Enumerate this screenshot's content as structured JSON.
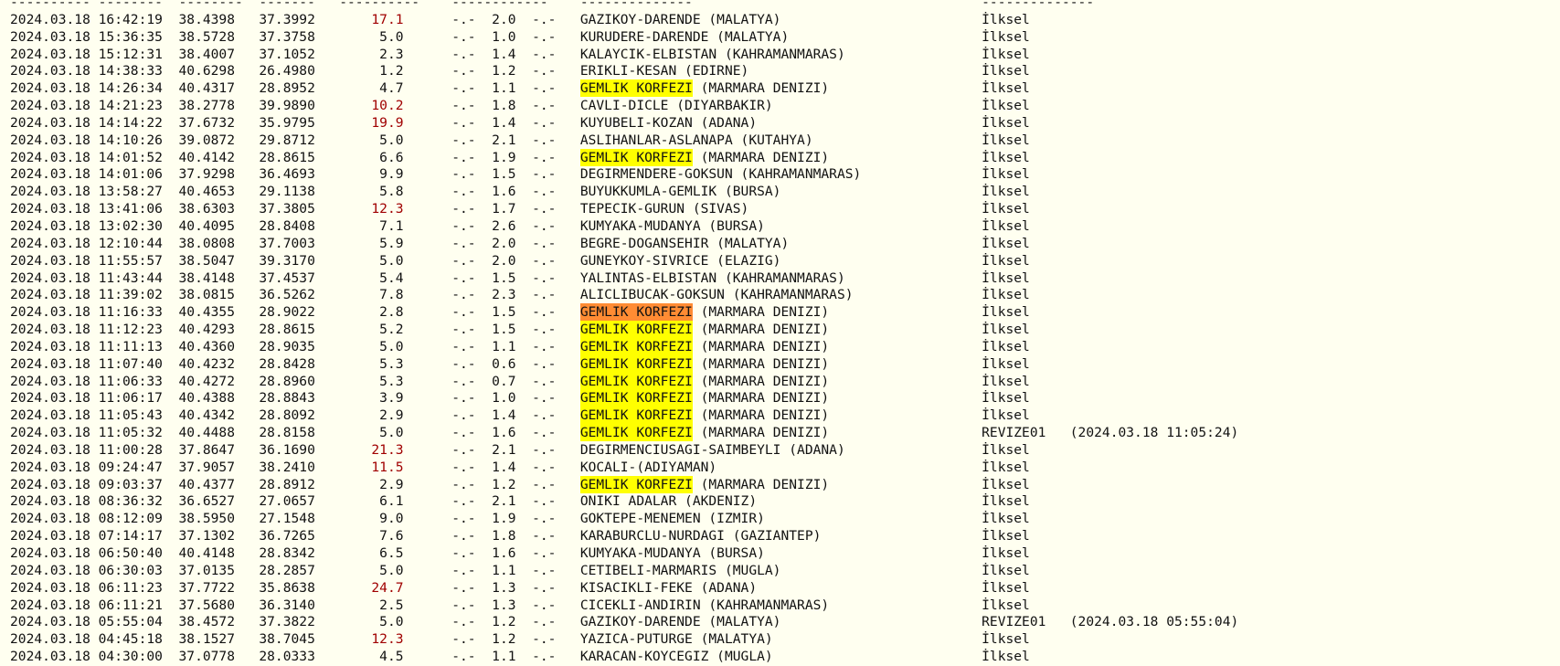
{
  "colors": {
    "background": "#fffff0",
    "highlight_yellow": "#ffff00",
    "highlight_orange": "#ff8c33",
    "deep_depth": "#a00000"
  },
  "header_rule": [
    "----------",
    "--------",
    "--------",
    "-------",
    "----------",
    "------------",
    "--------------",
    "--------------"
  ],
  "rows": [
    [
      "2024.03.18",
      "16:42:19",
      "38.4398",
      "37.3992",
      "17.1",
      "-.-",
      "2.0",
      "-.-",
      "GAZIKOY-DARENDE (MALATYA)",
      null,
      "İlksel",
      null
    ],
    [
      "2024.03.18",
      "15:36:35",
      "38.5728",
      "37.3758",
      "5.0",
      "-.-",
      "1.0",
      "-.-",
      "KURUDERE-DARENDE (MALATYA)",
      null,
      "İlksel",
      null
    ],
    [
      "2024.03.18",
      "15:12:31",
      "38.4007",
      "37.1052",
      "2.3",
      "-.-",
      "1.4",
      "-.-",
      "KALAYCIK-ELBISTAN (KAHRAMANMARAS)",
      null,
      "İlksel",
      null
    ],
    [
      "2024.03.18",
      "14:38:33",
      "40.6298",
      "26.4980",
      "1.2",
      "-.-",
      "1.2",
      "-.-",
      "ERIKLI-KESAN (EDIRNE)",
      null,
      "İlksel",
      null
    ],
    [
      "2024.03.18",
      "14:26:34",
      "40.4317",
      "28.8952",
      "4.7",
      "-.-",
      "1.1",
      "-.-",
      "GEMLIK KORFEZI (MARMARA DENIZI)",
      "yellow",
      "İlksel",
      null
    ],
    [
      "2024.03.18",
      "14:21:23",
      "38.2778",
      "39.9890",
      "10.2",
      "-.-",
      "1.8",
      "-.-",
      "CAVLI-DICLE (DIYARBAKIR)",
      null,
      "İlksel",
      null
    ],
    [
      "2024.03.18",
      "14:14:22",
      "37.6732",
      "35.9795",
      "19.9",
      "-.-",
      "1.4",
      "-.-",
      "KUYUBELI-KOZAN (ADANA)",
      null,
      "İlksel",
      null
    ],
    [
      "2024.03.18",
      "14:10:26",
      "39.0872",
      "29.8712",
      "5.0",
      "-.-",
      "2.1",
      "-.-",
      "ASLIHANLAR-ASLANAPA (KUTAHYA)",
      null,
      "İlksel",
      null
    ],
    [
      "2024.03.18",
      "14:01:52",
      "40.4142",
      "28.8615",
      "6.6",
      "-.-",
      "1.9",
      "-.-",
      "GEMLIK KORFEZI (MARMARA DENIZI)",
      "yellow",
      "İlksel",
      null
    ],
    [
      "2024.03.18",
      "14:01:06",
      "37.9298",
      "36.4693",
      "9.9",
      "-.-",
      "1.5",
      "-.-",
      "DEGIRMENDERE-GOKSUN (KAHRAMANMARAS)",
      null,
      "İlksel",
      null
    ],
    [
      "2024.03.18",
      "13:58:27",
      "40.4653",
      "29.1138",
      "5.8",
      "-.-",
      "1.6",
      "-.-",
      "BUYUKKUMLA-GEMLIK (BURSA)",
      null,
      "İlksel",
      null
    ],
    [
      "2024.03.18",
      "13:41:06",
      "38.6303",
      "37.3805",
      "12.3",
      "-.-",
      "1.7",
      "-.-",
      "TEPECIK-GURUN (SIVAS)",
      null,
      "İlksel",
      null
    ],
    [
      "2024.03.18",
      "13:02:30",
      "40.4095",
      "28.8408",
      "7.1",
      "-.-",
      "2.6",
      "-.-",
      "KUMYAKA-MUDANYA (BURSA)",
      null,
      "İlksel",
      null
    ],
    [
      "2024.03.18",
      "12:10:44",
      "38.0808",
      "37.7003",
      "5.9",
      "-.-",
      "2.0",
      "-.-",
      "BEGRE-DOGANSEHIR (MALATYA)",
      null,
      "İlksel",
      null
    ],
    [
      "2024.03.18",
      "11:55:57",
      "38.5047",
      "39.3170",
      "5.0",
      "-.-",
      "2.0",
      "-.-",
      "GUNEYKOY-SIVRICE (ELAZIG)",
      null,
      "İlksel",
      null
    ],
    [
      "2024.03.18",
      "11:43:44",
      "38.4148",
      "37.4537",
      "5.4",
      "-.-",
      "1.5",
      "-.-",
      "YALINTAS-ELBISTAN (KAHRAMANMARAS)",
      null,
      "İlksel",
      null
    ],
    [
      "2024.03.18",
      "11:39:02",
      "38.0815",
      "36.5262",
      "7.8",
      "-.-",
      "2.3",
      "-.-",
      "ALICLIBUCAK-GOKSUN (KAHRAMANMARAS)",
      null,
      "İlksel",
      null
    ],
    [
      "2024.03.18",
      "11:16:33",
      "40.4355",
      "28.9022",
      "2.8",
      "-.-",
      "1.5",
      "-.-",
      "GEMLIK KORFEZI (MARMARA DENIZI)",
      "orange",
      "İlksel",
      null
    ],
    [
      "2024.03.18",
      "11:12:23",
      "40.4293",
      "28.8615",
      "5.2",
      "-.-",
      "1.5",
      "-.-",
      "GEMLIK KORFEZI (MARMARA DENIZI)",
      "yellow",
      "İlksel",
      null
    ],
    [
      "2024.03.18",
      "11:11:13",
      "40.4360",
      "28.9035",
      "5.0",
      "-.-",
      "1.1",
      "-.-",
      "GEMLIK KORFEZI (MARMARA DENIZI)",
      "yellow",
      "İlksel",
      null
    ],
    [
      "2024.03.18",
      "11:07:40",
      "40.4232",
      "28.8428",
      "5.3",
      "-.-",
      "0.6",
      "-.-",
      "GEMLIK KORFEZI (MARMARA DENIZI)",
      "yellow",
      "İlksel",
      null
    ],
    [
      "2024.03.18",
      "11:06:33",
      "40.4272",
      "28.8960",
      "5.3",
      "-.-",
      "0.7",
      "-.-",
      "GEMLIK KORFEZI (MARMARA DENIZI)",
      "yellow",
      "İlksel",
      null
    ],
    [
      "2024.03.18",
      "11:06:17",
      "40.4388",
      "28.8843",
      "3.9",
      "-.-",
      "1.0",
      "-.-",
      "GEMLIK KORFEZI (MARMARA DENIZI)",
      "yellow",
      "İlksel",
      null
    ],
    [
      "2024.03.18",
      "11:05:43",
      "40.4342",
      "28.8092",
      "2.9",
      "-.-",
      "1.4",
      "-.-",
      "GEMLIK KORFEZI (MARMARA DENIZI)",
      "yellow",
      "İlksel",
      null
    ],
    [
      "2024.03.18",
      "11:05:32",
      "40.4488",
      "28.8158",
      "5.0",
      "-.-",
      "1.6",
      "-.-",
      "GEMLIK KORFEZI (MARMARA DENIZI)",
      "yellow",
      "REVIZE01",
      "(2024.03.18 11:05:24)"
    ],
    [
      "2024.03.18",
      "11:00:28",
      "37.8647",
      "36.1690",
      "21.3",
      "-.-",
      "2.1",
      "-.-",
      "DEGIRMENCIUSAGI-SAIMBEYLI (ADANA)",
      null,
      "İlksel",
      null
    ],
    [
      "2024.03.18",
      "09:24:47",
      "37.9057",
      "38.2410",
      "11.5",
      "-.-",
      "1.4",
      "-.-",
      "KOCALI-(ADIYAMAN)",
      null,
      "İlksel",
      null
    ],
    [
      "2024.03.18",
      "09:03:37",
      "40.4377",
      "28.8912",
      "2.9",
      "-.-",
      "1.2",
      "-.-",
      "GEMLIK KORFEZI (MARMARA DENIZI)",
      "yellow",
      "İlksel",
      null
    ],
    [
      "2024.03.18",
      "08:36:32",
      "36.6527",
      "27.0657",
      "6.1",
      "-.-",
      "2.1",
      "-.-",
      "ONIKI ADALAR (AKDENIZ)",
      null,
      "İlksel",
      null
    ],
    [
      "2024.03.18",
      "08:12:09",
      "38.5950",
      "27.1548",
      "9.0",
      "-.-",
      "1.9",
      "-.-",
      "GOKTEPE-MENEMEN (IZMIR)",
      null,
      "İlksel",
      null
    ],
    [
      "2024.03.18",
      "07:14:17",
      "37.1302",
      "36.7265",
      "7.6",
      "-.-",
      "1.8",
      "-.-",
      "KARABURCLU-NURDAGI (GAZIANTEP)",
      null,
      "İlksel",
      null
    ],
    [
      "2024.03.18",
      "06:50:40",
      "40.4148",
      "28.8342",
      "6.5",
      "-.-",
      "1.6",
      "-.-",
      "KUMYAKA-MUDANYA (BURSA)",
      null,
      "İlksel",
      null
    ],
    [
      "2024.03.18",
      "06:30:03",
      "37.0135",
      "28.2857",
      "5.0",
      "-.-",
      "1.1",
      "-.-",
      "CETIBELI-MARMARIS (MUGLA)",
      null,
      "İlksel",
      null
    ],
    [
      "2024.03.18",
      "06:11:23",
      "37.7722",
      "35.8638",
      "24.7",
      "-.-",
      "1.3",
      "-.-",
      "KISACIKLI-FEKE (ADANA)",
      null,
      "İlksel",
      null
    ],
    [
      "2024.03.18",
      "06:11:21",
      "37.5680",
      "36.3140",
      "2.5",
      "-.-",
      "1.3",
      "-.-",
      "CICEKLI-ANDIRIN (KAHRAMANMARAS)",
      null,
      "İlksel",
      null
    ],
    [
      "2024.03.18",
      "05:55:04",
      "38.4572",
      "37.3822",
      "5.0",
      "-.-",
      "1.2",
      "-.-",
      "GAZIKOY-DARENDE (MALATYA)",
      null,
      "REVIZE01",
      "(2024.03.18 05:55:04)"
    ],
    [
      "2024.03.18",
      "04:45:18",
      "38.1527",
      "38.7045",
      "12.3",
      "-.-",
      "1.2",
      "-.-",
      "YAZICA-PUTURGE (MALATYA)",
      null,
      "İlksel",
      null
    ],
    [
      "2024.03.18",
      "04:30:00",
      "37.0778",
      "28.0333",
      "4.5",
      "-.-",
      "1.1",
      "-.-",
      "KARACAN-KOYCEGIZ (MUGLA)",
      null,
      "İlksel",
      null
    ]
  ]
}
